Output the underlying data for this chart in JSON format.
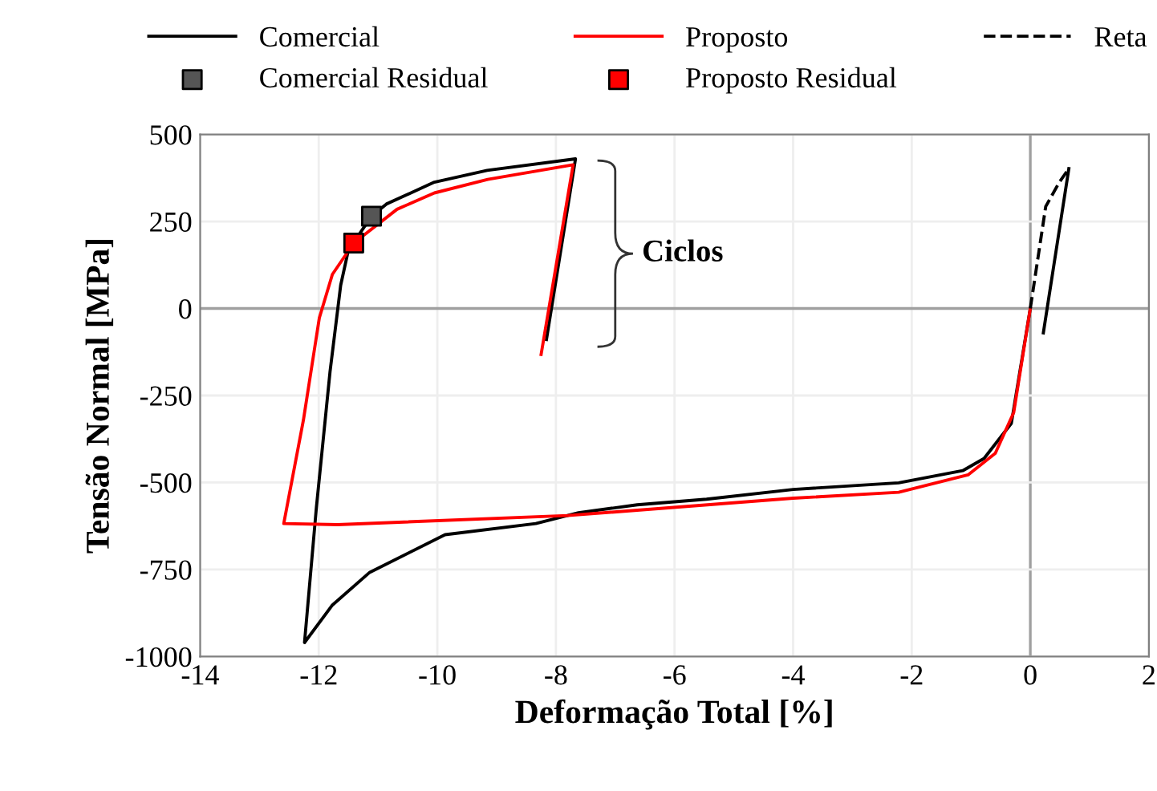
{
  "chart_data": {
    "type": "line",
    "xlabel": "Deformação Total [%]",
    "ylabel": "Tensão Normal [MPa]",
    "xlim": [
      -14,
      2
    ],
    "xticks": [
      -14,
      -12,
      -10,
      -8,
      -6,
      -4,
      -2,
      0,
      2
    ],
    "ylim": [
      -1000,
      500
    ],
    "yticks": [
      -1000,
      -750,
      -500,
      -250,
      0,
      250,
      500
    ],
    "grid": true,
    "legend": "top",
    "marker": "none",
    "line_style": "solid",
    "annotations": [
      "Ciclos"
    ],
    "series": [
      {
        "name": "Comercial",
        "color": "#000000",
        "x": [
          0.22,
          0.65,
          null,
          0,
          -0.32,
          -0.78,
          -1.14,
          -2.22,
          -4,
          -5.46,
          -6.63,
          -7.62,
          -8.34,
          -9.87,
          -11.14,
          -11.77,
          -12.24,
          -12.04,
          -11.81,
          -11.63,
          -11.5,
          -11.11,
          -10.86,
          -10.05,
          -9.16,
          -7.67,
          -8.16
        ],
        "values": [
          -70,
          402,
          null,
          0,
          -330,
          -431,
          -466,
          -501,
          -520,
          -548,
          -564,
          -587,
          -618,
          -650,
          -758,
          -852,
          -960,
          -572,
          -182,
          67,
          168,
          265,
          300,
          363,
          397,
          430,
          -89
        ]
      },
      {
        "name": "Proposto",
        "color": "#ff0000",
        "x": [
          0,
          -0.28,
          -0.59,
          -1.05,
          -2.22,
          -4,
          -7.8,
          -11.68,
          -12.59,
          -12.26,
          -11.99,
          -11.77,
          -11.41,
          -10.68,
          -10.05,
          -9.15,
          -7.71,
          -8.25
        ],
        "values": [
          0,
          -299,
          -416,
          -478,
          -528,
          -545,
          -595,
          -621,
          -618,
          -322,
          -27,
          98,
          188,
          285,
          332,
          371,
          413,
          -132
        ]
      },
      {
        "name": "Reta",
        "color": "#000000",
        "line_style": "dashed",
        "x": [
          0,
          0.26,
          0.49,
          0.65
        ],
        "values": [
          0,
          293,
          363,
          402
        ]
      },
      {
        "name": "Comercial Residual",
        "type": "scatter",
        "marker": "square",
        "color": "#555555",
        "x": [
          -11.11
        ],
        "values": [
          265
        ]
      },
      {
        "name": "Proposto Residual",
        "type": "scatter",
        "marker": "square",
        "color": "#ff0000",
        "x": [
          -11.41
        ],
        "values": [
          188
        ]
      }
    ]
  }
}
